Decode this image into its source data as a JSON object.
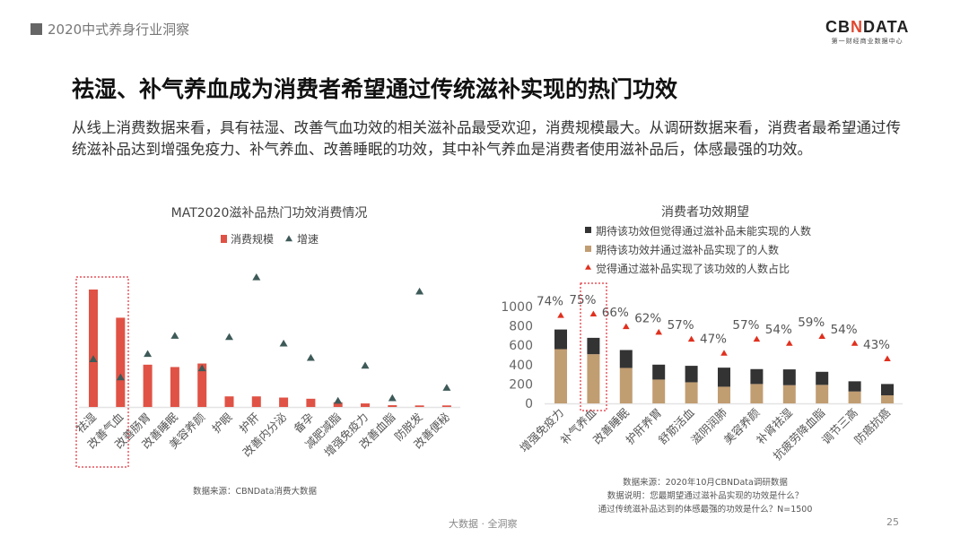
{
  "header": {
    "section": "2020中式养身行业洞察"
  },
  "logo": {
    "brand": "CBNDATA",
    "tagline": "第一财经商业数据中心"
  },
  "title": "祛湿、补气养血成为消费者希望通过传统滋补实现的热门功效",
  "description": "从线上消费数据来看，具有祛湿、改善气血功效的相关滋补品最受欢迎，消费规模最大。从调研数据来看，消费者最希望通过传统滋补品达到增强免疫力、补气养血、改善睡眠的功效，其中补气养血是消费者使用滋补品后，体感最强的功效。",
  "chart_data": [
    {
      "type": "bar",
      "title": "MAT2020滋补品热门功效消费情况",
      "legend": [
        "消费规模",
        "增速"
      ],
      "legend_position": "top",
      "categories": [
        "祛湿",
        "改善气血",
        "改善肠胃",
        "改善睡眠",
        "美容养颜",
        "护眼",
        "护肝",
        "改善内分泌",
        "备孕",
        "减肥减脂",
        "增强免疫力",
        "改善血脂",
        "防脱发",
        "改善便秘"
      ],
      "series": [
        {
          "name": "消费规模",
          "type": "bar",
          "values": [
            100,
            76,
            36,
            34,
            37,
            9,
            9,
            8,
            7,
            4,
            3,
            1.5,
            1.3,
            1.3
          ]
        },
        {
          "name": "增速",
          "type": "scatter",
          "values": [
            37,
            23,
            41,
            55,
            30,
            54,
            100,
            49,
            38,
            5,
            32,
            7,
            89,
            15
          ]
        }
      ],
      "highlighted": [
        "祛湿",
        "改善气血"
      ],
      "source": "数据来源：CBNData消费大数据"
    },
    {
      "type": "bar",
      "title": "消费者功效期望",
      "legend": [
        "期待该功效但觉得通过滋补品未能实现的人数",
        "期待该功效并通过滋补品实现了的人数",
        "觉得通过滋补品实现了该功效的人数占比"
      ],
      "legend_position": "top",
      "categories": [
        "增强免疫力",
        "补气养血",
        "改善睡眠",
        "护肝养胃",
        "舒筋活血",
        "滋阴润肺",
        "美容养颜",
        "补肾祛湿",
        "抗疲劳降血脂",
        "调节三高",
        "防癌抗癌"
      ],
      "series": [
        {
          "name": "期待该功效并通过滋补品实现了的人数",
          "type": "stacked-bar",
          "values": [
            560,
            508,
            366,
            246,
            218,
            172,
            200,
            188,
            191,
            123,
            83
          ]
        },
        {
          "name": "期待该功效但觉得通过滋补品未能实现的人数",
          "type": "stacked-bar",
          "values": [
            203,
            169,
            185,
            154,
            170,
            197,
            154,
            163,
            135,
            105,
            117
          ]
        },
        {
          "name": "觉得通过滋补品实现了该功效的人数占比",
          "type": "scatter",
          "values": [
            74,
            75,
            66,
            62,
            57,
            47,
            57,
            54,
            59,
            54,
            43
          ],
          "labels": [
            "74%",
            "75%",
            "66%",
            "62%",
            "57%",
            "47%",
            "57%",
            "54%",
            "59%",
            "54%",
            "43%"
          ]
        }
      ],
      "yticks": [
        "0",
        "200",
        "400",
        "600",
        "800",
        "1000"
      ],
      "ylim": [
        0,
        1000
      ],
      "highlighted": [
        "补气养血"
      ],
      "source_lines": [
        "数据来源：2020年10月CBNData调研数据",
        "数据说明：您最期望通过滋补品实现的功效是什么？",
        "通过传统滋补品达到的体感最强的功效是什么？N=1500"
      ]
    }
  ],
  "colors": {
    "bar_red": "#e05245",
    "triangle_dark": "#3d5a58",
    "tan": "#c19d72",
    "dark": "#333333",
    "tri_red": "#e0301e",
    "highlight": "#e0303a"
  },
  "footer": {
    "center": "大数据 · 全洞察",
    "page": "25"
  }
}
